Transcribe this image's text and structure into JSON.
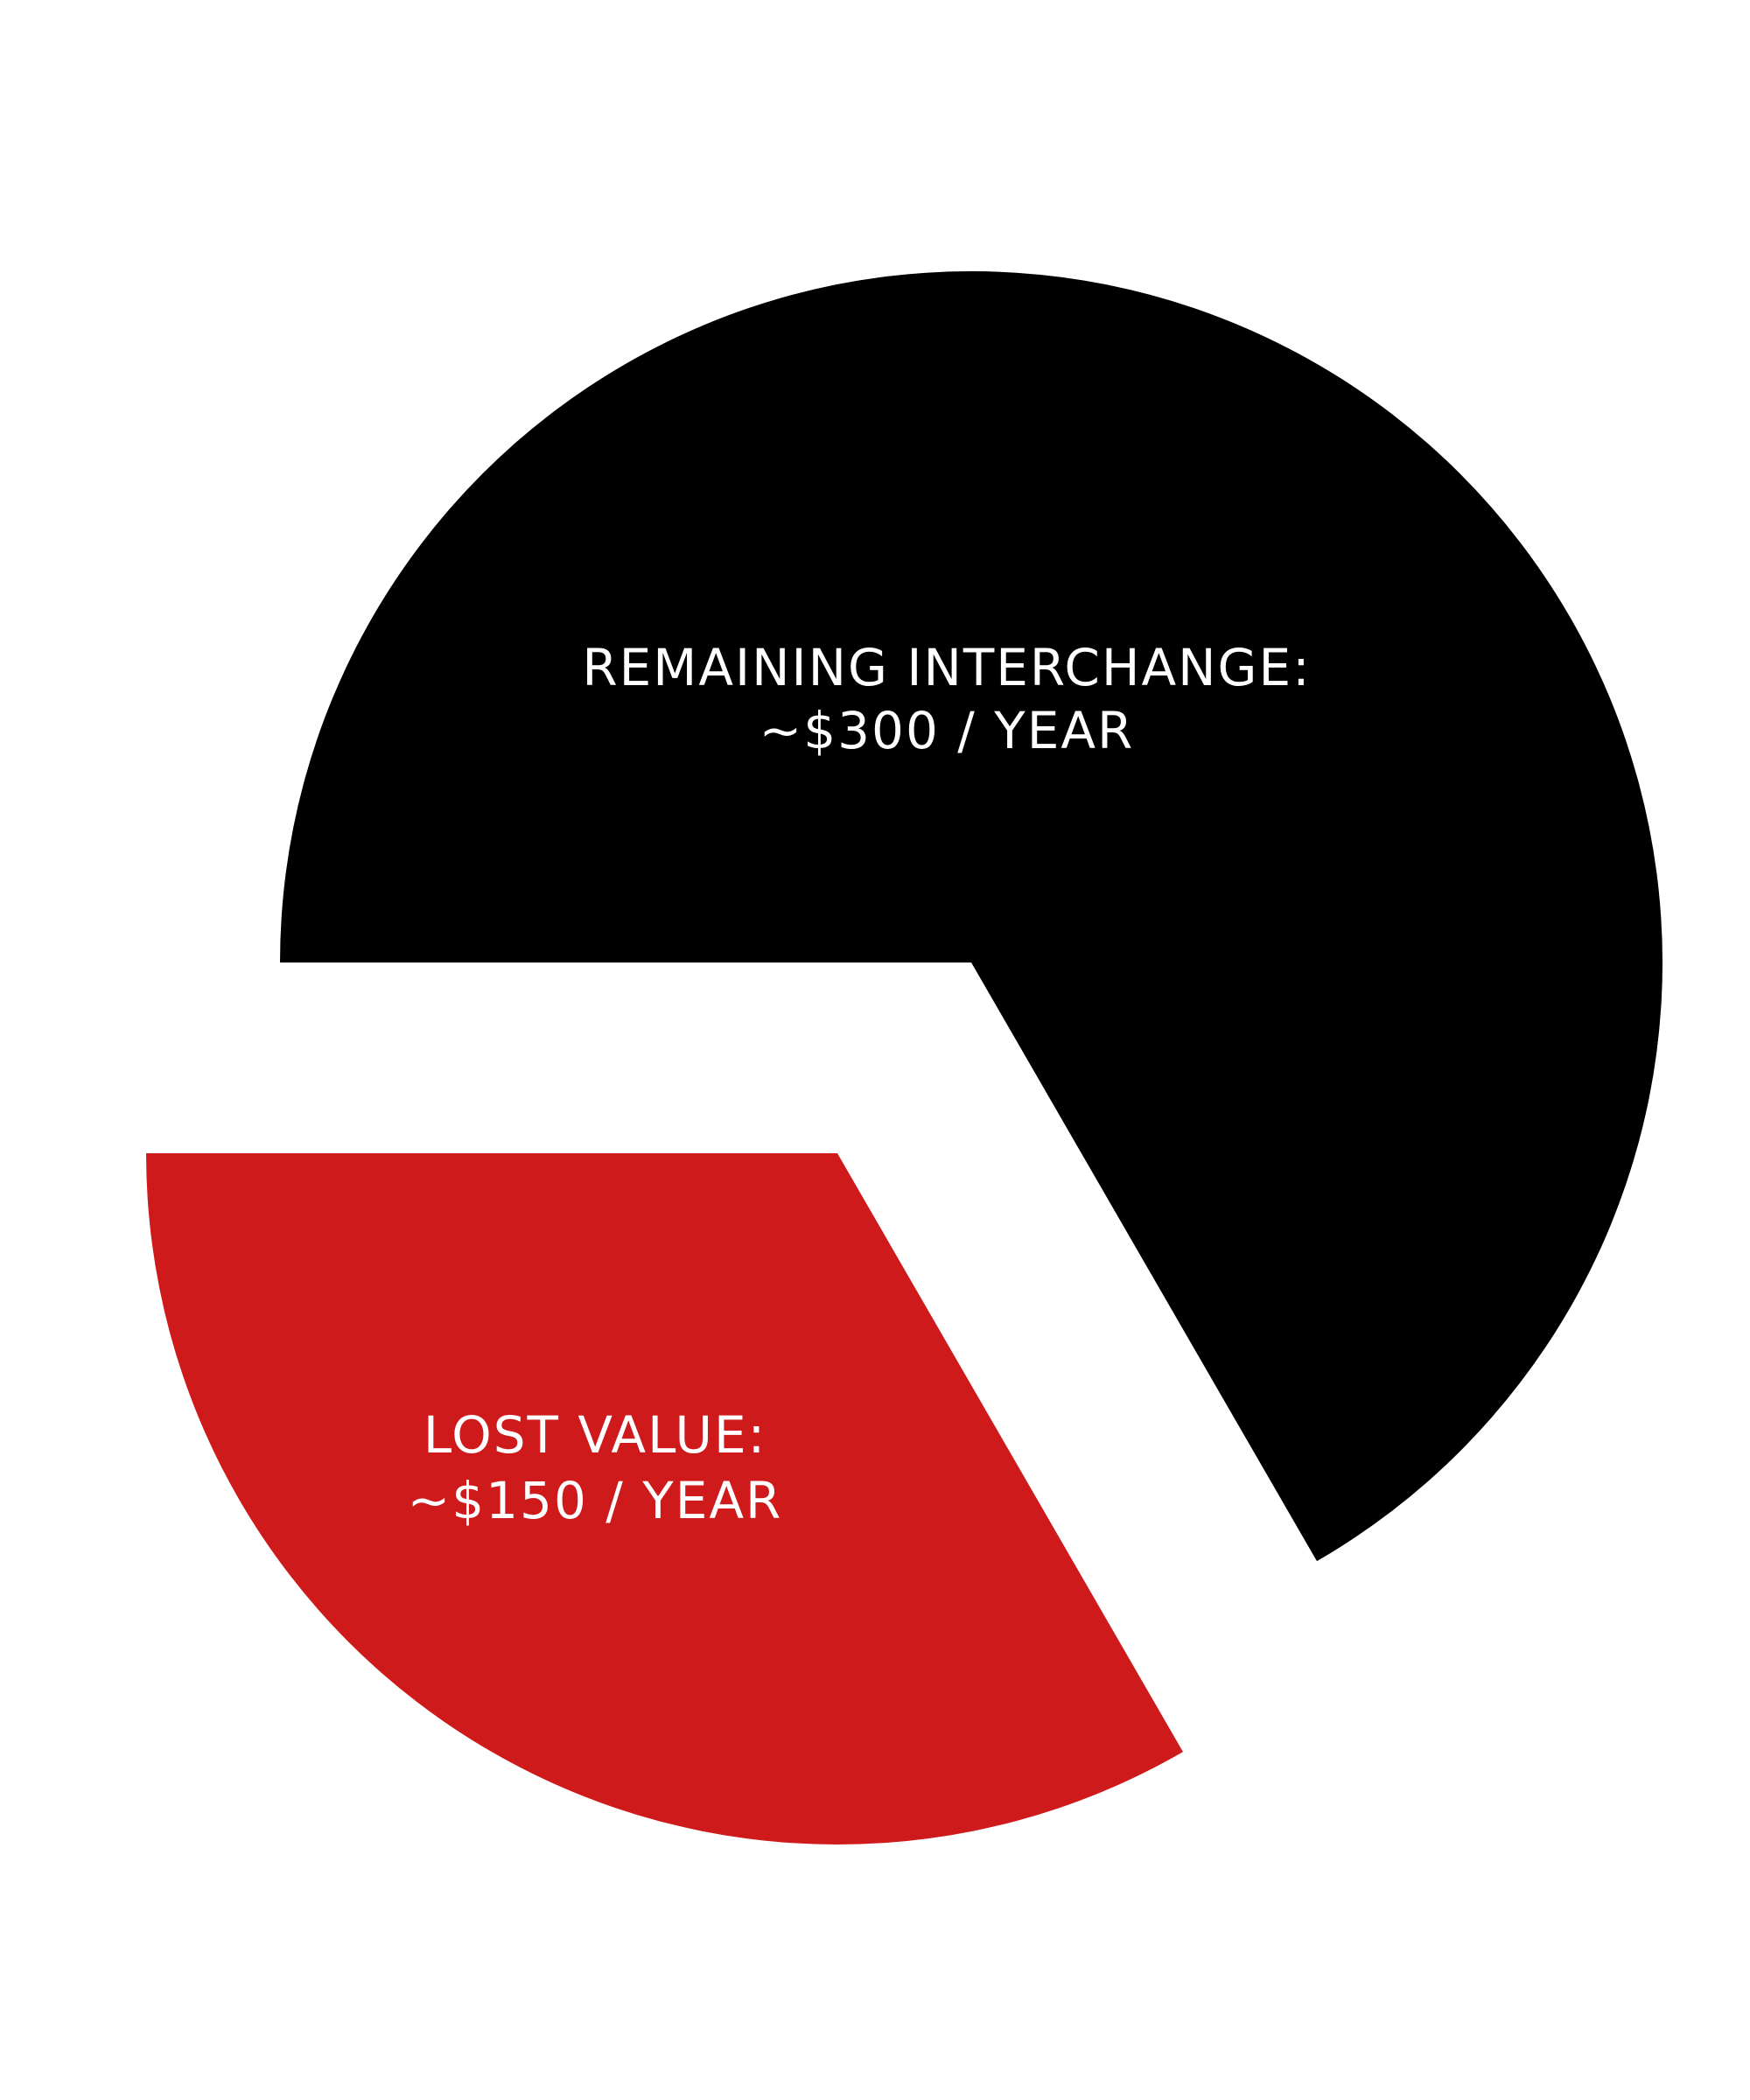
{
  "chart_data": {
    "type": "pie",
    "title": "",
    "slices": [
      {
        "label": "REMAINING INTERCHANGE:",
        "value_text": "~$300 / YEAR",
        "value": 300,
        "color": "#000000"
      },
      {
        "label": "LOST VALUE:",
        "value_text": "~$150 / YEAR",
        "value": 150,
        "color": "#cf1a1b",
        "exploded": true
      }
    ],
    "legend": "none"
  }
}
